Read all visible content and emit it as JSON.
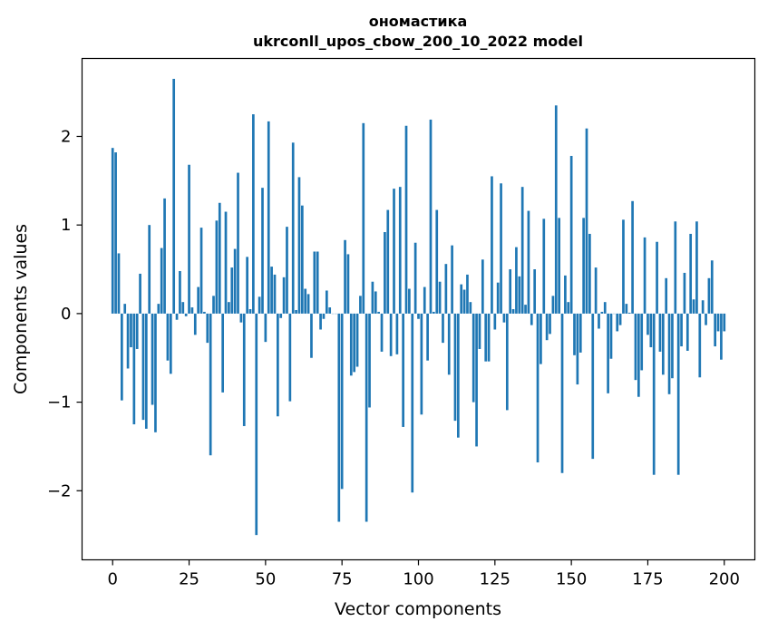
{
  "chart_data": {
    "type": "bar",
    "title": "ономастика",
    "subtitle": "ukrconll_upos_cbow_200_10_2022 model",
    "xlabel": "Vector components",
    "ylabel": "Components values",
    "xlim": [
      -10,
      210
    ],
    "ylim": [
      -2.78,
      2.88
    ],
    "xticks": [
      0,
      25,
      50,
      75,
      100,
      125,
      150,
      175,
      200
    ],
    "xtick_labels": [
      "0",
      "25",
      "50",
      "75",
      "100",
      "125",
      "150",
      "175",
      "200"
    ],
    "yticks": [
      -2,
      -1,
      0,
      1,
      2
    ],
    "ytick_labels": [
      "−2",
      "−1",
      "0",
      "1",
      "2"
    ],
    "grid": false,
    "bar_color": "#1f77b4",
    "series": [
      {
        "values": [
          1.87,
          1.82,
          0.68,
          -0.98,
          0.11,
          -0.62,
          -0.38,
          -1.25,
          -0.4,
          0.45,
          -1.2,
          -1.3,
          1.0,
          -1.03,
          -1.34,
          0.11,
          0.74,
          1.3,
          -0.53,
          -0.68,
          2.65,
          -0.07,
          0.48,
          0.13,
          -0.03,
          1.68,
          0.07,
          -0.24,
          0.3,
          0.97,
          0.02,
          -0.33,
          -1.6,
          0.2,
          1.05,
          1.25,
          -0.89,
          1.15,
          0.13,
          0.52,
          0.73,
          1.59,
          -0.1,
          -1.27,
          0.64,
          0.05,
          2.25,
          -2.5,
          0.19,
          1.42,
          -0.32,
          2.17,
          0.53,
          0.44,
          -1.16,
          -0.05,
          0.41,
          0.98,
          -0.99,
          1.93,
          0.04,
          1.54,
          1.22,
          0.28,
          0.22,
          -0.5,
          0.7,
          0.7,
          -0.18,
          -0.06,
          0.26,
          0.07,
          0.0,
          0.0,
          -2.35,
          -1.98,
          0.83,
          0.67,
          -0.7,
          -0.66,
          -0.6,
          0.2,
          2.15,
          -2.35,
          -1.06,
          0.36,
          0.25,
          0.02,
          -0.43,
          0.92,
          1.17,
          -0.48,
          1.41,
          -0.46,
          1.43,
          -1.28,
          2.12,
          0.28,
          -2.02,
          0.8,
          -0.06,
          -1.14,
          0.3,
          -0.53,
          2.19,
          0.02,
          1.17,
          0.36,
          -0.33,
          0.56,
          -0.69,
          0.77,
          -1.21,
          -1.4,
          0.33,
          0.27,
          0.44,
          0.13,
          -1.0,
          -1.5,
          -0.4,
          0.61,
          -0.54,
          -0.54,
          1.55,
          -0.18,
          0.35,
          1.47,
          -0.1,
          -1.09,
          0.5,
          0.05,
          0.75,
          0.42,
          1.43,
          0.1,
          1.16,
          -0.13,
          0.5,
          -1.68,
          -0.57,
          1.07,
          -0.3,
          -0.23,
          0.2,
          2.35,
          1.08,
          -1.8,
          0.43,
          0.13,
          1.78,
          -0.47,
          -0.8,
          -0.44,
          1.08,
          2.09,
          0.9,
          -1.64,
          0.52,
          -0.17,
          0.02,
          0.13,
          -0.9,
          -0.51,
          0.0,
          -0.2,
          -0.13,
          1.06,
          0.11,
          0.01,
          1.27,
          -0.75,
          -0.94,
          -0.64,
          0.86,
          -0.24,
          -0.38,
          -1.82,
          0.81,
          -0.43,
          -0.69,
          0.4,
          -0.91,
          -0.73,
          1.04,
          -1.82,
          -0.37,
          0.46,
          -0.42,
          0.9,
          0.16,
          1.04,
          -0.72,
          0.15,
          -0.13,
          0.4,
          0.6,
          -0.37,
          -0.2,
          -0.52,
          -0.2
        ]
      }
    ]
  }
}
